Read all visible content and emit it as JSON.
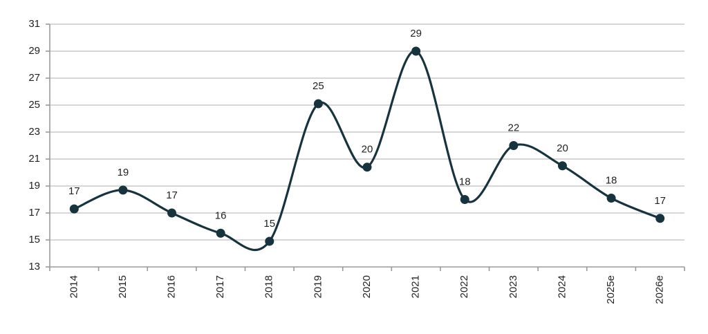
{
  "chart_data": {
    "type": "line",
    "title": "",
    "xlabel": "",
    "ylabel": "",
    "categories": [
      "2014",
      "2015",
      "2016",
      "2017",
      "2018",
      "2019",
      "2020",
      "2021",
      "2022",
      "2023",
      "2024",
      "2025e",
      "2026e"
    ],
    "series": [
      {
        "values": [
          17.3,
          18.7,
          17.0,
          15.5,
          14.9,
          25.1,
          20.4,
          29.0,
          18.0,
          22.0,
          20.5,
          18.1,
          16.6
        ],
        "labels": [
          "17",
          "19",
          "17",
          "16",
          "15",
          "25",
          "20",
          "29",
          "18",
          "22",
          "20",
          "18",
          "17"
        ]
      }
    ],
    "ylim": [
      13,
      31
    ],
    "yticks": [
      "13",
      "15",
      "17",
      "19",
      "21",
      "23",
      "25",
      "27",
      "29",
      "31"
    ],
    "grid": true,
    "legend": "none",
    "smooth": true,
    "colors": {
      "line": "#17333d",
      "marker": "#17333d",
      "grid": "#c9c9c9",
      "axis": "#9a9a9a"
    }
  }
}
